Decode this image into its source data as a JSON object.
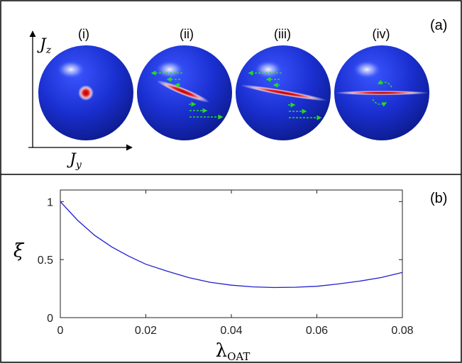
{
  "panel_a": {
    "label": "(a)",
    "axis_vertical": "J",
    "axis_vertical_sub": "z",
    "axis_horizontal": "J",
    "axis_horizontal_sub": "y",
    "spheres": [
      {
        "label": "(i)"
      },
      {
        "label": "(ii)"
      },
      {
        "label": "(iii)"
      },
      {
        "label": "(iv)"
      }
    ],
    "colors": {
      "sphere": "#1a2fd0",
      "squeeze": "#d01010",
      "arrows": "#22dd22"
    }
  },
  "chart_data": {
    "type": "line",
    "panel_label": "(b)",
    "xlabel": "λ",
    "xlabel_sub": "OAT",
    "ylabel": "ξ",
    "xlim": [
      0,
      0.08
    ],
    "ylim": [
      0,
      1.1
    ],
    "xticks": [
      0,
      0.02,
      0.04,
      0.06,
      0.08
    ],
    "xtick_labels": [
      "0",
      "0.02",
      "0.04",
      "0.06",
      "0.08"
    ],
    "yticks": [
      0,
      0.5,
      1
    ],
    "ytick_labels": [
      "0",
      "0.5",
      "1"
    ],
    "grid": false,
    "series": [
      {
        "color": "#1f1fd0",
        "x": [
          0,
          0.004,
          0.008,
          0.012,
          0.016,
          0.02,
          0.025,
          0.03,
          0.035,
          0.04,
          0.045,
          0.05,
          0.055,
          0.06,
          0.065,
          0.07,
          0.075,
          0.08
        ],
        "y": [
          1.0,
          0.84,
          0.71,
          0.61,
          0.53,
          0.46,
          0.4,
          0.345,
          0.305,
          0.28,
          0.265,
          0.26,
          0.262,
          0.27,
          0.29,
          0.315,
          0.345,
          0.39
        ]
      }
    ]
  }
}
